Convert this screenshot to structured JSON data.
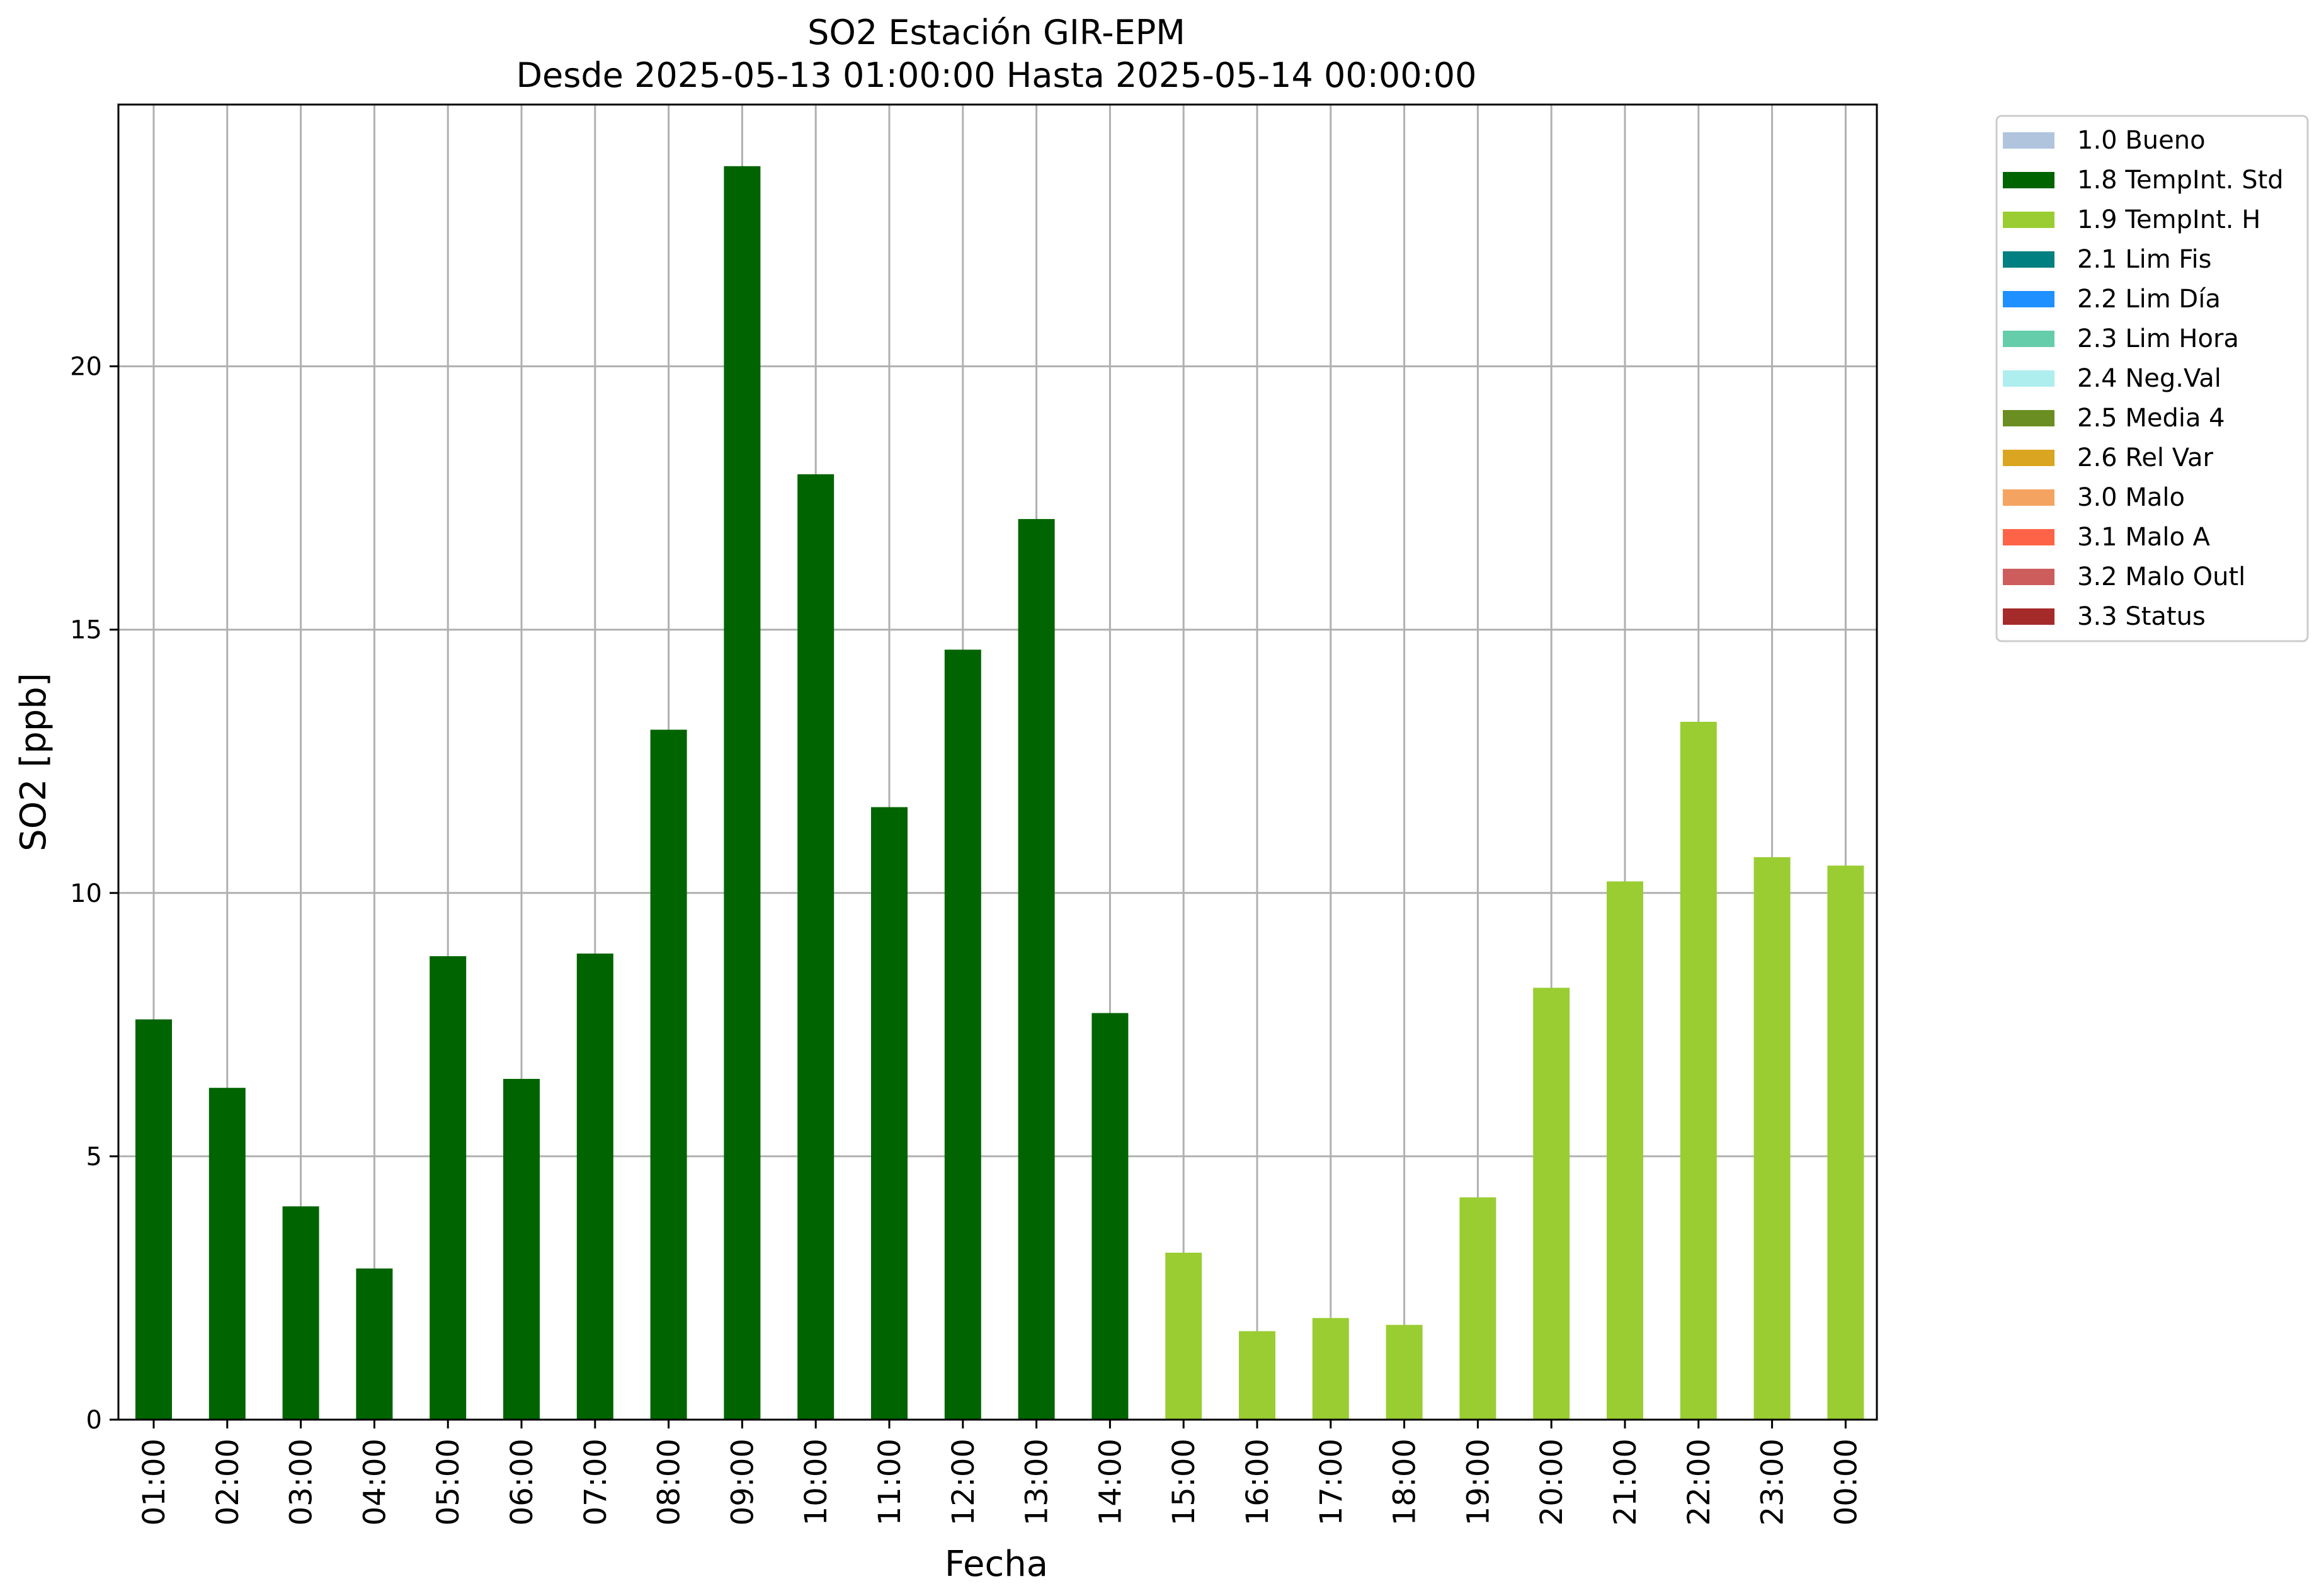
{
  "chart_data": {
    "type": "bar",
    "title": "SO2 Estación GIR-EPM",
    "subtitle": "Desde 2025-05-13 01:00:00 Hasta 2025-05-14 00:00:00",
    "xlabel": "Fecha",
    "ylabel": "SO2 [ppb]",
    "ylim": [
      0,
      25
    ],
    "yticks": [
      0,
      5,
      10,
      15,
      20
    ],
    "grid": true,
    "legend_position": "outside top-right",
    "categories": [
      "01:00",
      "02:00",
      "03:00",
      "04:00",
      "05:00",
      "06:00",
      "07:00",
      "08:00",
      "09:00",
      "10:00",
      "11:00",
      "12:00",
      "13:00",
      "14:00",
      "15:00",
      "16:00",
      "17:00",
      "18:00",
      "19:00",
      "20:00",
      "21:00",
      "22:00",
      "23:00",
      "00:00"
    ],
    "values": [
      7.6,
      6.3,
      4.05,
      2.87,
      8.8,
      6.47,
      8.85,
      13.1,
      23.8,
      17.95,
      11.63,
      14.62,
      17.1,
      7.72,
      3.17,
      1.68,
      1.93,
      1.8,
      4.22,
      8.2,
      10.22,
      13.25,
      10.68,
      10.52
    ],
    "flags": [
      "1.8",
      "1.8",
      "1.8",
      "1.8",
      "1.8",
      "1.8",
      "1.8",
      "1.8",
      "1.8",
      "1.8",
      "1.8",
      "1.8",
      "1.8",
      "1.8",
      "1.9",
      "1.9",
      "1.9",
      "1.9",
      "1.9",
      "1.9",
      "1.9",
      "1.9",
      "1.9",
      "1.9"
    ],
    "legend": [
      {
        "code": "1.8",
        "label": "1.8 TempInt. Std",
        "color": "#006400"
      },
      {
        "code": "1.0",
        "label": "1.0 Bueno",
        "color": "#b0c4de"
      },
      {
        "code": "1.9",
        "label": "1.9 TempInt. H",
        "color": "#9acd32"
      },
      {
        "code": "2.1",
        "label": "2.1 Lim Fis",
        "color": "#008080"
      },
      {
        "code": "2.2",
        "label": "2.2 Lim Día",
        "color": "#1e90ff"
      },
      {
        "code": "2.3",
        "label": "2.3 Lim Hora",
        "color": "#66cdaa"
      },
      {
        "code": "2.4",
        "label": "2.4 Neg.Val",
        "color": "#afeeee"
      },
      {
        "code": "2.5",
        "label": "2.5 Media 4",
        "color": "#6b8e23"
      },
      {
        "code": "2.6",
        "label": "2.6 Rel Var",
        "color": "#daa520"
      },
      {
        "code": "3.0",
        "label": "3.0 Malo",
        "color": "#f4a460"
      },
      {
        "code": "3.1",
        "label": "3.1 Malo A",
        "color": "#ff6347"
      },
      {
        "code": "3.2",
        "label": "3.2 Malo Outl",
        "color": "#cd5c5c"
      },
      {
        "code": "3.3",
        "label": "3.3 Status",
        "color": "#a52a2a"
      }
    ]
  }
}
